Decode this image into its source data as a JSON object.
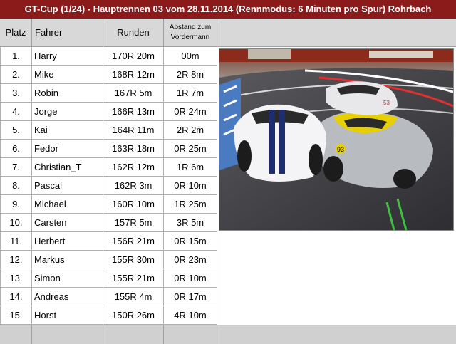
{
  "title": "GT-Cup (1/24)  -  Hauptrennen 03 vom 28.11.2014 (Rennmodus: 6 Minuten pro Spur) Rohrbach",
  "columns": {
    "platz": "Platz",
    "fahrer": "Fahrer",
    "runden": "Runden",
    "abstand_line1": "Abstand zum",
    "abstand_line2": "Vordermann"
  },
  "rows": [
    {
      "platz": "1.",
      "fahrer": "Harry",
      "runden": "170R 20m",
      "abstand": "00m"
    },
    {
      "platz": "2.",
      "fahrer": "Mike",
      "runden": "168R 12m",
      "abstand": "2R 8m"
    },
    {
      "platz": "3.",
      "fahrer": "Robin",
      "runden": "167R 5m",
      "abstand": "1R 7m"
    },
    {
      "platz": "4.",
      "fahrer": "Jorge",
      "runden": "166R 13m",
      "abstand": "0R 24m"
    },
    {
      "platz": "5.",
      "fahrer": "Kai",
      "runden": "164R 11m",
      "abstand": "2R 2m"
    },
    {
      "platz": "6.",
      "fahrer": "Fedor",
      "runden": "163R 18m",
      "abstand": "0R 25m"
    },
    {
      "platz": "7.",
      "fahrer": "Christian_T",
      "runden": "162R 12m",
      "abstand": "1R 6m"
    },
    {
      "platz": "8.",
      "fahrer": "Pascal",
      "runden": "162R 3m",
      "abstand": "0R 10m"
    },
    {
      "platz": "9.",
      "fahrer": "Michael",
      "runden": "160R 10m",
      "abstand": "1R 25m"
    },
    {
      "platz": "10.",
      "fahrer": "Carsten",
      "runden": "157R 5m",
      "abstand": "3R 5m"
    },
    {
      "platz": "11.",
      "fahrer": "Herbert",
      "runden": "156R 21m",
      "abstand": "0R 15m"
    },
    {
      "platz": "12.",
      "fahrer": "Markus",
      "runden": "155R 30m",
      "abstand": "0R 23m"
    },
    {
      "platz": "13.",
      "fahrer": "Simon",
      "runden": "155R 21m",
      "abstand": "0R 10m"
    },
    {
      "platz": "14.",
      "fahrer": "Andreas",
      "runden": "155R 4m",
      "abstand": "0R 17m"
    },
    {
      "platz": "15.",
      "fahrer": "Horst",
      "runden": "150R 26m",
      "abstand": "4R 10m"
    }
  ],
  "photo": {
    "car_numbers": [
      "93",
      "53"
    ],
    "colors": {
      "title_bg": "#8b1a1a",
      "header_bg": "#d8d8d8",
      "car_yellow": "#e8d000",
      "car_silver": "#b8bcc0",
      "car_white": "#f4f4f6",
      "stripe_blue": "#1d2d70"
    }
  }
}
